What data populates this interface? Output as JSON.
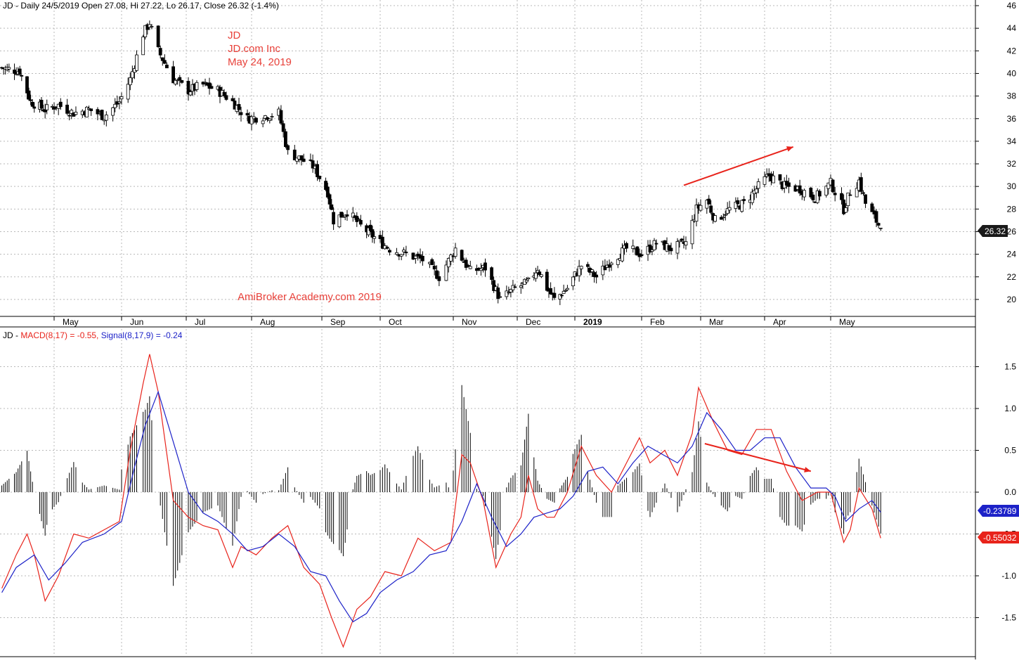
{
  "price_panel": {
    "header": "JD - Daily 24/5/2019 Open 27.08, Hi 27.22, Lo 26.17, Close 26.32 (-1.4%)",
    "annotation_lines": [
      "JD",
      "JD.com Inc",
      "May 24, 2019"
    ],
    "watermark": "AmiBroker Academy.com  2019",
    "last_price_label": "26.32"
  },
  "macd_panel": {
    "header_prefix": "JD - ",
    "macd_label": "MACD(8,17) = -0.55, ",
    "signal_label": "Signal(8,17,9) = -0.24",
    "signal_value_label": "-0.23789",
    "macd_value_label": "-0.55032"
  },
  "colors": {
    "macd": "#e8231b",
    "signal": "#1d22c8",
    "annotation": "#e8413a",
    "arrow": "#e8231b",
    "grid": "#b8b8b8"
  },
  "chart_data": [
    {
      "type": "candlestick",
      "title": "JD - Daily 24/5/2019",
      "x_labels": [
        "May",
        "Jun",
        "Jul",
        "Aug",
        "Sep",
        "Oct",
        "Nov",
        "Dec",
        "2019",
        "Feb",
        "Mar",
        "Apr",
        "May"
      ],
      "y_ticks": [
        20,
        22,
        24,
        26,
        28,
        30,
        32,
        34,
        36,
        38,
        40,
        42,
        44,
        46
      ],
      "ylim": [
        18.5,
        46.5
      ],
      "grid": true,
      "close_path": [
        [
          "2018-04-02",
          40.5
        ],
        [
          "2018-04-12",
          40.2
        ],
        [
          "2018-04-18",
          37.5
        ],
        [
          "2018-04-26",
          36.8
        ],
        [
          "2018-05-03",
          37.2
        ],
        [
          "2018-05-10",
          36.5
        ],
        [
          "2018-05-17",
          36.8
        ],
        [
          "2018-05-24",
          36.2
        ],
        [
          "2018-05-31",
          37.5
        ],
        [
          "2018-06-05",
          39.5
        ],
        [
          "2018-06-11",
          43.5
        ],
        [
          "2018-06-14",
          44.5
        ],
        [
          "2018-06-18",
          42.0
        ],
        [
          "2018-06-25",
          39.5
        ],
        [
          "2018-07-02",
          38.5
        ],
        [
          "2018-07-09",
          39.0
        ],
        [
          "2018-07-16",
          38.5
        ],
        [
          "2018-07-23",
          37.5
        ],
        [
          "2018-07-30",
          36.0
        ],
        [
          "2018-08-06",
          36.2
        ],
        [
          "2018-08-13",
          36.5
        ],
        [
          "2018-08-17",
          33.0
        ],
        [
          "2018-08-22",
          32.5
        ],
        [
          "2018-08-28",
          31.8
        ],
        [
          "2018-09-04",
          29.5
        ],
        [
          "2018-09-07",
          27.0
        ],
        [
          "2018-09-14",
          27.8
        ],
        [
          "2018-09-21",
          26.5
        ],
        [
          "2018-09-28",
          25.5
        ],
        [
          "2018-10-05",
          24.5
        ],
        [
          "2018-10-12",
          24.0
        ],
        [
          "2018-10-19",
          23.5
        ],
        [
          "2018-10-26",
          22.0
        ],
        [
          "2018-11-02",
          24.5
        ],
        [
          "2018-11-09",
          22.5
        ],
        [
          "2018-11-16",
          22.8
        ],
        [
          "2018-11-23",
          20.0
        ],
        [
          "2018-11-30",
          21.0
        ],
        [
          "2018-12-07",
          21.5
        ],
        [
          "2018-12-12",
          22.8
        ],
        [
          "2018-12-17",
          21.0
        ],
        [
          "2018-12-21",
          20.0
        ],
        [
          "2018-12-28",
          21.0
        ],
        [
          "2019-01-04",
          23.0
        ],
        [
          "2019-01-11",
          22.0
        ],
        [
          "2019-01-18",
          23.5
        ],
        [
          "2019-01-25",
          24.5
        ],
        [
          "2019-02-01",
          24.0
        ],
        [
          "2019-02-08",
          25.0
        ],
        [
          "2019-02-15",
          24.5
        ],
        [
          "2019-02-22",
          25.0
        ],
        [
          "2019-02-27",
          28.0
        ],
        [
          "2019-03-04",
          28.8
        ],
        [
          "2019-03-08",
          27.0
        ],
        [
          "2019-03-15",
          28.0
        ],
        [
          "2019-03-22",
          28.5
        ],
        [
          "2019-03-29",
          30.0
        ],
        [
          "2019-04-03",
          31.0
        ],
        [
          "2019-04-10",
          30.0
        ],
        [
          "2019-04-17",
          29.8
        ],
        [
          "2019-04-24",
          29.0
        ],
        [
          "2019-05-01",
          30.3
        ],
        [
          "2019-05-07",
          28.0
        ],
        [
          "2019-05-10",
          29.5
        ],
        [
          "2019-05-14",
          30.5
        ],
        [
          "2019-05-17",
          28.5
        ],
        [
          "2019-05-24",
          26.32
        ]
      ],
      "arrows": [
        {
          "from": [
            "2019-02-21",
            30.1
          ],
          "to": [
            "2019-04-14",
            33.5
          ]
        }
      ]
    },
    {
      "type": "line",
      "title": "MACD(8,17), Signal(8,17,9)",
      "x_labels": [
        "May",
        "Jun",
        "Jul",
        "Aug",
        "Sep",
        "Oct",
        "Nov",
        "Dec",
        "2019",
        "Feb",
        "Mar",
        "Apr",
        "May"
      ],
      "y_ticks": [
        -1.5,
        -1.0,
        -0.5,
        0.0,
        0.5,
        1.0,
        1.5
      ],
      "ylim": [
        -1.95,
        1.95
      ],
      "grid": true,
      "series": [
        {
          "name": "MACD(8,17)",
          "color": "#e8231b",
          "points": [
            [
              "2018-04-02",
              -1.15
            ],
            [
              "2018-04-10",
              -0.75
            ],
            [
              "2018-04-16",
              -0.5
            ],
            [
              "2018-04-20",
              -0.75
            ],
            [
              "2018-04-26",
              -1.3
            ],
            [
              "2018-05-03",
              -1.0
            ],
            [
              "2018-05-10",
              -0.5
            ],
            [
              "2018-05-17",
              -0.55
            ],
            [
              "2018-05-24",
              -0.45
            ],
            [
              "2018-05-31",
              -0.35
            ],
            [
              "2018-06-05",
              0.5
            ],
            [
              "2018-06-11",
              1.3
            ],
            [
              "2018-06-14",
              1.65
            ],
            [
              "2018-06-18",
              1.2
            ],
            [
              "2018-06-25",
              -0.1
            ],
            [
              "2018-07-02",
              -0.3
            ],
            [
              "2018-07-09",
              -0.4
            ],
            [
              "2018-07-16",
              -0.45
            ],
            [
              "2018-07-23",
              -0.9
            ],
            [
              "2018-07-27",
              -0.65
            ],
            [
              "2018-08-03",
              -0.75
            ],
            [
              "2018-08-10",
              -0.55
            ],
            [
              "2018-08-17",
              -0.4
            ],
            [
              "2018-08-24",
              -0.9
            ],
            [
              "2018-08-31",
              -1.1
            ],
            [
              "2018-09-06",
              -1.5
            ],
            [
              "2018-09-12",
              -1.85
            ],
            [
              "2018-09-19",
              -1.4
            ],
            [
              "2018-09-26",
              -1.25
            ],
            [
              "2018-10-03",
              -0.95
            ],
            [
              "2018-10-10",
              -1.0
            ],
            [
              "2018-10-17",
              -0.55
            ],
            [
              "2018-10-24",
              -0.7
            ],
            [
              "2018-10-31",
              -0.6
            ],
            [
              "2018-11-05",
              0.45
            ],
            [
              "2018-11-09",
              0.35
            ],
            [
              "2018-11-15",
              -0.1
            ],
            [
              "2018-11-21",
              -0.9
            ],
            [
              "2018-11-28",
              -0.5
            ],
            [
              "2018-12-03",
              -0.3
            ],
            [
              "2018-12-07",
              0.2
            ],
            [
              "2018-12-12",
              -0.2
            ],
            [
              "2018-12-17",
              -0.3
            ],
            [
              "2018-12-21",
              -0.3
            ],
            [
              "2018-12-28",
              0.0
            ],
            [
              "2019-01-04",
              0.55
            ],
            [
              "2019-01-11",
              0.2
            ],
            [
              "2019-01-18",
              0.0
            ],
            [
              "2019-01-25",
              0.35
            ],
            [
              "2019-01-31",
              0.65
            ],
            [
              "2019-02-05",
              0.35
            ],
            [
              "2019-02-12",
              0.5
            ],
            [
              "2019-02-18",
              0.2
            ],
            [
              "2019-02-25",
              0.7
            ],
            [
              "2019-02-28",
              1.25
            ],
            [
              "2019-03-07",
              0.85
            ],
            [
              "2019-03-14",
              0.5
            ],
            [
              "2019-03-21",
              0.45
            ],
            [
              "2019-03-28",
              0.75
            ],
            [
              "2019-04-04",
              0.75
            ],
            [
              "2019-04-11",
              0.25
            ],
            [
              "2019-04-18",
              -0.1
            ],
            [
              "2019-04-25",
              0.0
            ],
            [
              "2019-05-01",
              0.0
            ],
            [
              "2019-05-07",
              -0.6
            ],
            [
              "2019-05-10",
              -0.45
            ],
            [
              "2019-05-14",
              0.05
            ],
            [
              "2019-05-20",
              -0.2
            ],
            [
              "2019-05-24",
              -0.55
            ]
          ]
        },
        {
          "name": "Signal(8,17,9)",
          "color": "#1d22c8",
          "points": [
            [
              "2018-04-02",
              -1.2
            ],
            [
              "2018-04-10",
              -0.9
            ],
            [
              "2018-04-20",
              -0.75
            ],
            [
              "2018-04-28",
              -1.05
            ],
            [
              "2018-05-06",
              -0.85
            ],
            [
              "2018-05-14",
              -0.6
            ],
            [
              "2018-05-24",
              -0.5
            ],
            [
              "2018-06-01",
              -0.35
            ],
            [
              "2018-06-07",
              0.3
            ],
            [
              "2018-06-12",
              0.8
            ],
            [
              "2018-06-18",
              1.2
            ],
            [
              "2018-06-25",
              0.6
            ],
            [
              "2018-07-02",
              0.0
            ],
            [
              "2018-07-09",
              -0.25
            ],
            [
              "2018-07-16",
              -0.35
            ],
            [
              "2018-07-23",
              -0.5
            ],
            [
              "2018-07-30",
              -0.7
            ],
            [
              "2018-08-06",
              -0.65
            ],
            [
              "2018-08-13",
              -0.5
            ],
            [
              "2018-08-20",
              -0.65
            ],
            [
              "2018-08-27",
              -0.95
            ],
            [
              "2018-09-03",
              -1.0
            ],
            [
              "2018-09-10",
              -1.3
            ],
            [
              "2018-09-17",
              -1.55
            ],
            [
              "2018-09-24",
              -1.45
            ],
            [
              "2018-10-01",
              -1.2
            ],
            [
              "2018-10-08",
              -1.05
            ],
            [
              "2018-10-15",
              -0.95
            ],
            [
              "2018-10-22",
              -0.75
            ],
            [
              "2018-10-29",
              -0.7
            ],
            [
              "2018-11-05",
              -0.35
            ],
            [
              "2018-11-12",
              0.1
            ],
            [
              "2018-11-19",
              -0.3
            ],
            [
              "2018-11-26",
              -0.65
            ],
            [
              "2018-12-03",
              -0.5
            ],
            [
              "2018-12-10",
              -0.3
            ],
            [
              "2018-12-17",
              -0.25
            ],
            [
              "2018-12-24",
              -0.2
            ],
            [
              "2018-12-31",
              -0.05
            ],
            [
              "2019-01-07",
              0.25
            ],
            [
              "2019-01-14",
              0.3
            ],
            [
              "2019-01-21",
              0.1
            ],
            [
              "2019-01-28",
              0.35
            ],
            [
              "2019-02-04",
              0.55
            ],
            [
              "2019-02-11",
              0.45
            ],
            [
              "2019-02-18",
              0.35
            ],
            [
              "2019-02-25",
              0.55
            ],
            [
              "2019-03-04",
              0.95
            ],
            [
              "2019-03-11",
              0.75
            ],
            [
              "2019-03-18",
              0.5
            ],
            [
              "2019-03-25",
              0.5
            ],
            [
              "2019-04-01",
              0.65
            ],
            [
              "2019-04-08",
              0.65
            ],
            [
              "2019-04-15",
              0.3
            ],
            [
              "2019-04-22",
              0.05
            ],
            [
              "2019-04-29",
              0.05
            ],
            [
              "2019-05-03",
              -0.05
            ],
            [
              "2019-05-08",
              -0.35
            ],
            [
              "2019-05-14",
              -0.2
            ],
            [
              "2019-05-20",
              -0.1
            ],
            [
              "2019-05-24",
              -0.24
            ]
          ]
        }
      ],
      "arrows": [
        {
          "from": [
            "2019-03-03",
            0.58
          ],
          "to": [
            "2019-04-22",
            0.25
          ]
        }
      ]
    }
  ]
}
